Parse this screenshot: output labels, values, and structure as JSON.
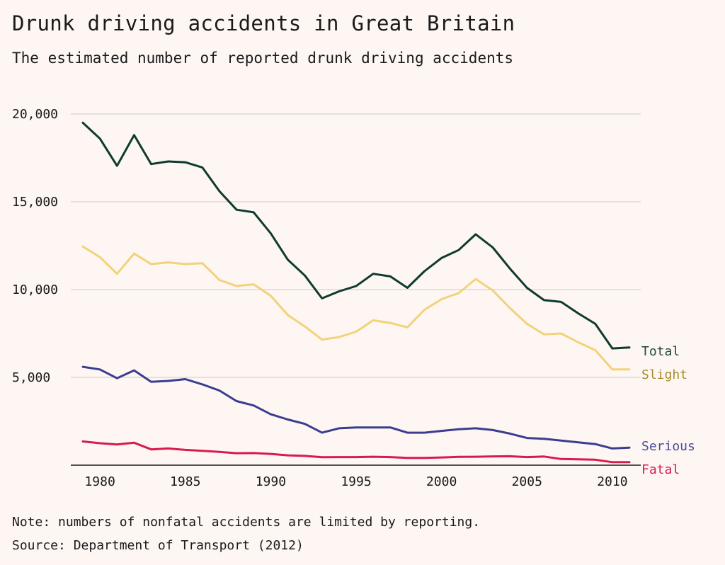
{
  "title": "Drunk driving accidents in Great Britain",
  "subtitle": "The estimated number of reported drunk driving accidents",
  "note": "Note: numbers of nonfatal accidents are limited by reporting.",
  "source": "Source: Department of Transport (2012)",
  "chart_data": {
    "type": "line",
    "title": "Drunk driving accidents in Great Britain",
    "subtitle": "The estimated number of reported drunk driving accidents",
    "xlabel": "",
    "ylabel": "",
    "xlim": [
      1979,
      2011
    ],
    "ylim": [
      0,
      20000
    ],
    "grid": true,
    "legend": "direct labels at right end of lines",
    "x_ticks": [
      1980,
      1985,
      1990,
      1995,
      2000,
      2005,
      2010
    ],
    "x_tick_labels": [
      "1980",
      "1985",
      "1990",
      "1995",
      "2000",
      "2005",
      "2010"
    ],
    "y_ticks": [
      5000,
      10000,
      15000,
      20000
    ],
    "y_tick_labels": [
      "5,000",
      "10,000",
      "15,000",
      "20,000"
    ],
    "x": [
      1979,
      1980,
      1981,
      1982,
      1983,
      1984,
      1985,
      1986,
      1987,
      1988,
      1989,
      1990,
      1991,
      1992,
      1993,
      1994,
      1995,
      1996,
      1997,
      1998,
      1999,
      2000,
      2001,
      2002,
      2003,
      2004,
      2005,
      2006,
      2007,
      2008,
      2009,
      2010,
      2011
    ],
    "series": [
      {
        "name": "Total",
        "color": "#0f3b2e",
        "label_color": "#1f4a3d",
        "values": [
          19500,
          18600,
          17050,
          18800,
          17150,
          17300,
          17250,
          16950,
          15600,
          14550,
          14400,
          13200,
          11700,
          10800,
          9500,
          9900,
          10200,
          10900,
          10750,
          10100,
          11050,
          11800,
          12250,
          13150,
          12400,
          11200,
          10100,
          9400,
          9300,
          8650,
          8050,
          6650,
          6700
        ]
      },
      {
        "name": "Slight",
        "color": "#f2d27a",
        "label_color": "#a8892a",
        "values": [
          12450,
          11850,
          10900,
          12050,
          11450,
          11550,
          11450,
          11500,
          10550,
          10200,
          10300,
          9650,
          8550,
          7900,
          7150,
          7300,
          7600,
          8250,
          8100,
          7850,
          8850,
          9450,
          9800,
          10600,
          9950,
          8950,
          8050,
          7450,
          7500,
          7000,
          6550,
          5450,
          5450
        ]
      },
      {
        "name": "Serious",
        "color": "#3b3d8f",
        "label_color": "#4a4c9c",
        "values": [
          5600,
          5450,
          4950,
          5400,
          4750,
          4800,
          4900,
          4600,
          4250,
          3650,
          3400,
          2900,
          2600,
          2350,
          1850,
          2100,
          2150,
          2150,
          2150,
          1850,
          1850,
          1950,
          2050,
          2100,
          2000,
          1800,
          1550,
          1500,
          1400,
          1300,
          1200,
          950,
          1000
        ]
      },
      {
        "name": "Fatal",
        "color": "#d81b4c",
        "label_color": "#d81b4c",
        "values": [
          1350,
          1250,
          1180,
          1280,
          900,
          950,
          870,
          820,
          760,
          680,
          690,
          640,
          560,
          530,
          450,
          460,
          460,
          480,
          460,
          410,
          410,
          440,
          470,
          480,
          500,
          510,
          460,
          490,
          350,
          330,
          310,
          170,
          170
        ]
      }
    ]
  }
}
